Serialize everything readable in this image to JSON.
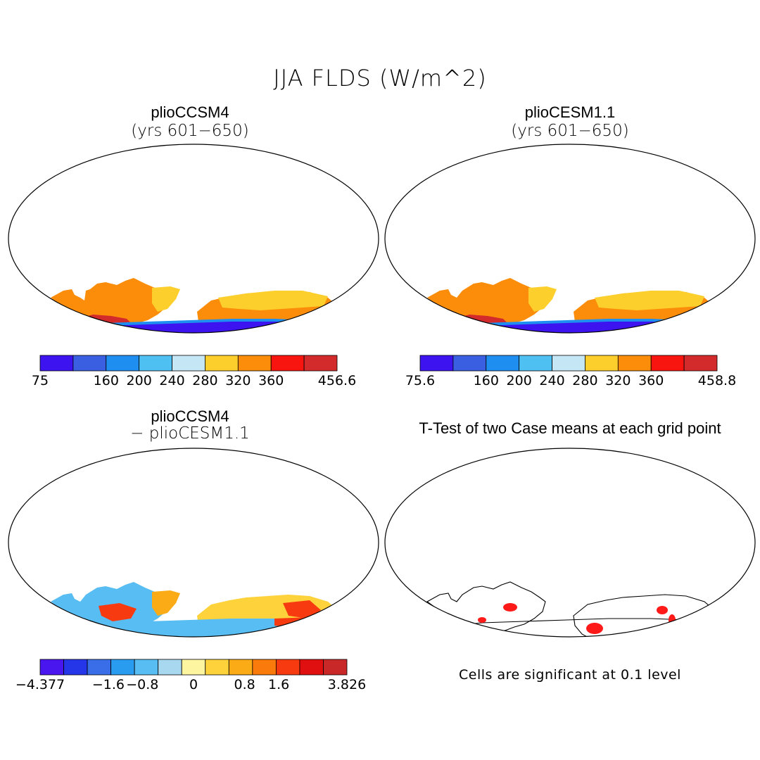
{
  "figure": {
    "title": "JJA FLDS (W/m^2)",
    "footnote": "Cells are significant at 0.1 level"
  },
  "panels": {
    "top_left": {
      "title": "plioCCSM4",
      "subtitle": "(yrs 601−650)"
    },
    "top_right": {
      "title": "plioCESM1.1",
      "subtitle": "(yrs 601−650)"
    },
    "bottom_left": {
      "title": "plioCCSM4",
      "subtitle": "− plioCESM1.1"
    },
    "bottom_right": {
      "title": "T-Test of two Case means at each grid point"
    }
  },
  "colorbars": {
    "top_left": {
      "colors": [
        "#3d14f0",
        "#3a5fe0",
        "#1e8ef0",
        "#4fc0f2",
        "#c5e6f5",
        "#fdcf2c",
        "#fb8d0a",
        "#f81510",
        "#d32b2b"
      ],
      "ticks": [
        {
          "label": "75",
          "at": 0
        },
        {
          "label": "160",
          "at": 2
        },
        {
          "label": "200",
          "at": 3
        },
        {
          "label": "240",
          "at": 4
        },
        {
          "label": "280",
          "at": 5
        },
        {
          "label": "320",
          "at": 6
        },
        {
          "label": "360",
          "at": 7
        },
        {
          "label": "456.6",
          "at": 9
        }
      ]
    },
    "top_right": {
      "colors": [
        "#3d14f0",
        "#3a5fe0",
        "#1e8ef0",
        "#4fc0f2",
        "#c5e6f5",
        "#fdcf2c",
        "#fb8d0a",
        "#f81510",
        "#d32b2b"
      ],
      "ticks": [
        {
          "label": "75.6",
          "at": 0
        },
        {
          "label": "160",
          "at": 2
        },
        {
          "label": "200",
          "at": 3
        },
        {
          "label": "240",
          "at": 4
        },
        {
          "label": "280",
          "at": 5
        },
        {
          "label": "320",
          "at": 6
        },
        {
          "label": "360",
          "at": 7
        },
        {
          "label": "458.8",
          "at": 9
        }
      ]
    },
    "bottom_left": {
      "colors": [
        "#4a16f0",
        "#2535e8",
        "#3a6de8",
        "#2a9cf0",
        "#58bdf2",
        "#a8d8ef",
        "#fdf5a0",
        "#fdd23a",
        "#fbab16",
        "#fb7a0c",
        "#f83a10",
        "#e01010",
        "#c82828"
      ],
      "ticks": [
        {
          "label": "−4.377",
          "at": 0
        },
        {
          "label": "−1.6",
          "at": 2
        },
        {
          "label": "−0.8",
          "at": 3
        },
        {
          "label": "0",
          "at": 4.5
        },
        {
          "label": "0.8",
          "at": 6
        },
        {
          "label": "1.6",
          "at": 7
        },
        {
          "label": "3.826",
          "at": 9
        }
      ]
    }
  },
  "legend_colors": {
    "significant": "#ff1a1a",
    "map_outline": "#000000"
  }
}
